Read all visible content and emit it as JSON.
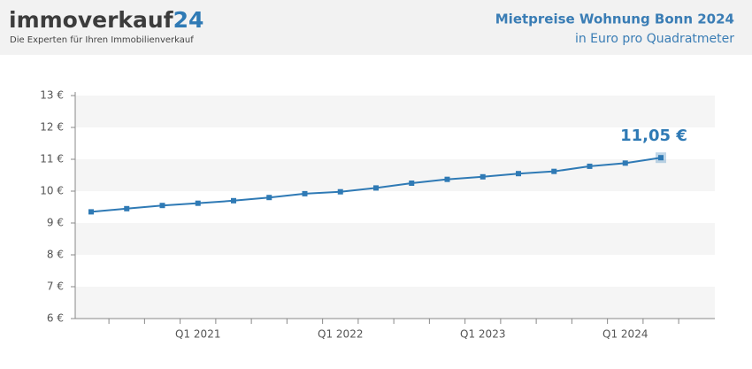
{
  "brand": {
    "name": "immoverkauf",
    "suffix": "24",
    "tagline": "Die Experten für Ihren Immobilienverkauf"
  },
  "chart_data": {
    "type": "line",
    "title": "Mietpreise Wohnung Bonn 2024",
    "subtitle": "in Euro pro Quadratmeter",
    "categories": [
      null,
      null,
      null,
      "Q1 2021",
      null,
      null,
      null,
      "Q1 2022",
      null,
      null,
      null,
      "Q1 2023",
      null,
      null,
      null,
      "Q1 2024",
      null
    ],
    "series": [
      {
        "name": "Mietpreis",
        "color": "#2f7ab5",
        "values": [
          9.35,
          9.45,
          9.55,
          9.62,
          9.7,
          9.8,
          9.92,
          9.98,
          10.1,
          10.25,
          10.37,
          10.45,
          10.55,
          10.62,
          10.78,
          10.88,
          11.05
        ],
        "value_labels": [
          null,
          null,
          null,
          null,
          null,
          null,
          null,
          null,
          null,
          null,
          null,
          null,
          null,
          null,
          null,
          null,
          "11,05 €"
        ]
      }
    ],
    "ylim": [
      6,
      13
    ],
    "yticks": [
      {
        "value": 6,
        "label": "6 €"
      },
      {
        "value": 7,
        "label": "7 €"
      },
      {
        "value": 8,
        "label": "8 €"
      },
      {
        "value": 9,
        "label": "9 €"
      },
      {
        "value": 10,
        "label": "10 €"
      },
      {
        "value": 11,
        "label": "11 €"
      },
      {
        "value": 12,
        "label": "12 €"
      },
      {
        "value": 13,
        "label": "13 €"
      }
    ],
    "grid": true
  }
}
